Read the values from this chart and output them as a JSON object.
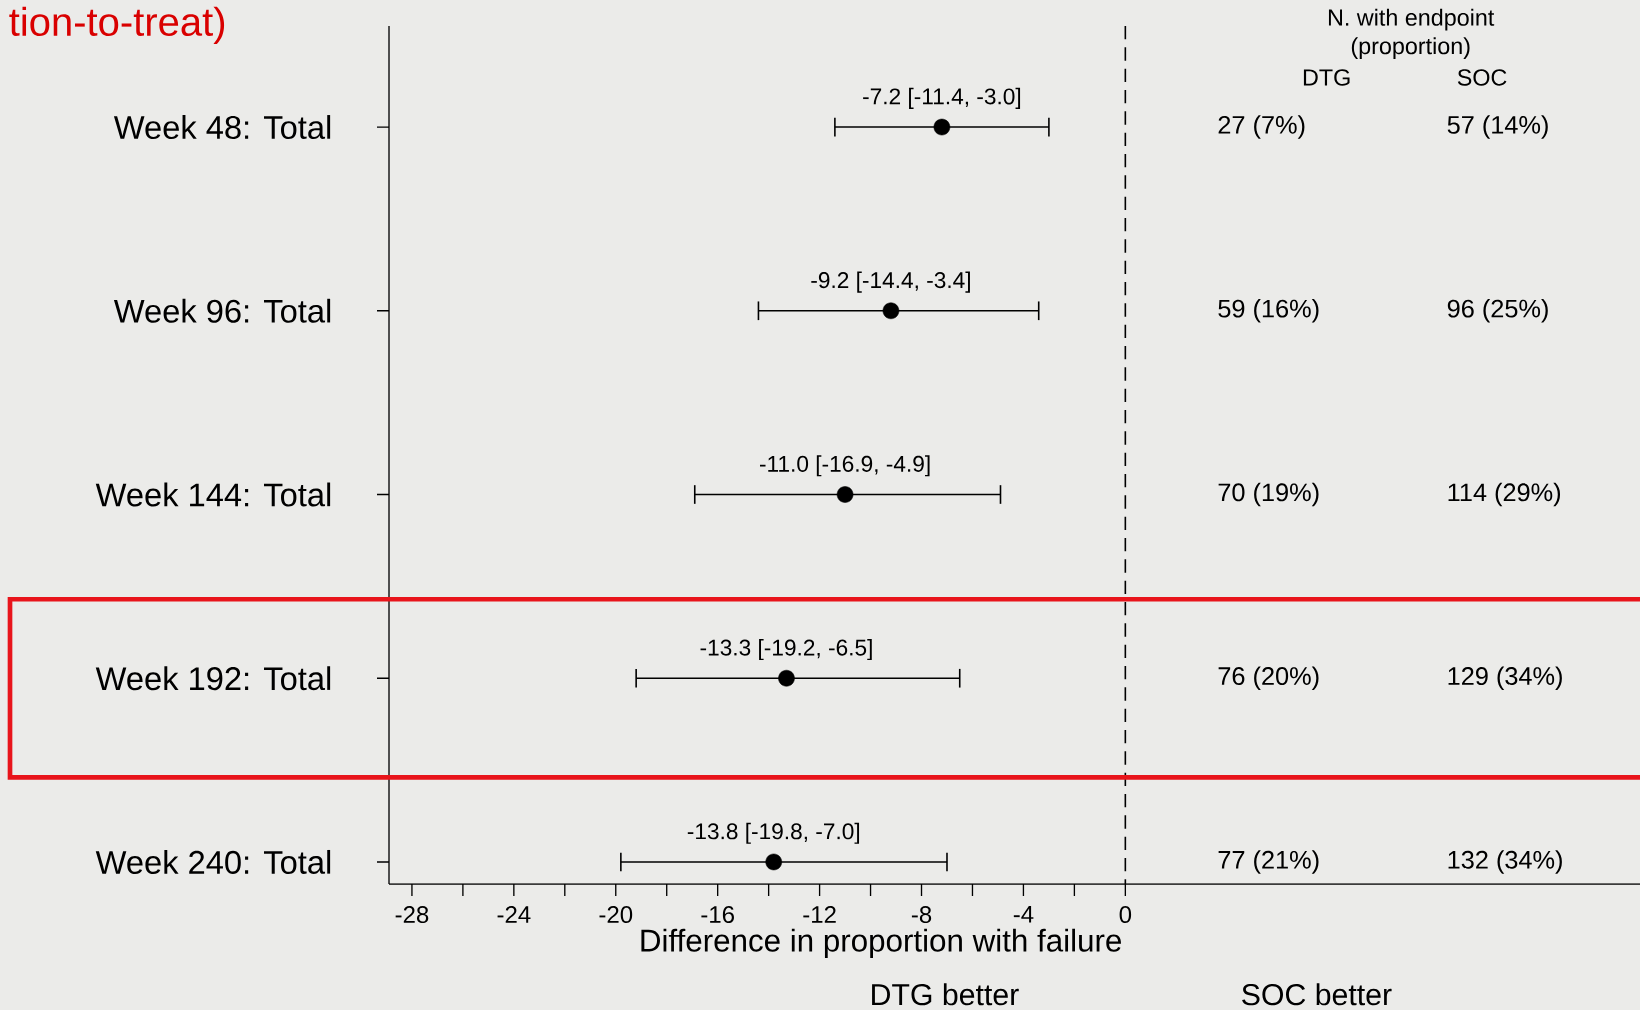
{
  "chart_data": {
    "type": "scatter",
    "orientation": "horizontal",
    "title": "tion-to-treat)",
    "xlabel": "Difference in proportion with failure",
    "categories": [
      "Week 48: Total",
      "Week 96: Total",
      "Week 144: Total",
      "Week 192: Total",
      "Week 240: Total"
    ],
    "values": [
      -7.2,
      -9.2,
      -11.0,
      -13.3,
      -13.8
    ],
    "errors": [
      [
        -11.4,
        -3.0
      ],
      [
        -14.4,
        -3.4
      ],
      [
        -16.9,
        -4.9
      ],
      [
        -19.2,
        -6.5
      ],
      [
        -19.8,
        -7.0
      ]
    ],
    "value_labels": [
      "-7.2 [-11.4, -3.0]",
      "-9.2 [-14.4, -3.4]",
      "-11.0 [-16.9, -4.9]",
      "-13.3 [-19.2, -6.5]",
      "-13.8 [-19.8, -7.0]"
    ],
    "color": "#000000",
    "xlim": [
      -28.9,
      20.2
    ],
    "xticks": [
      -28,
      {
        "value": -26,
        "label": null
      },
      -24,
      {
        "value": -22,
        "label": null
      },
      -20,
      {
        "value": -18,
        "label": null
      },
      -16,
      {
        "value": -14,
        "label": null
      },
      -12,
      {
        "value": -10,
        "label": null
      },
      -8,
      {
        "value": -6,
        "label": null
      },
      -4,
      {
        "value": -2,
        "label": null
      },
      0
    ],
    "ref_lines": [
      {
        "axis": "x",
        "value": 0,
        "line_style": "dashed",
        "color": "#000000"
      }
    ],
    "annotations": [
      "N. with endpoint",
      "(proportion)",
      "DTG",
      "SOC",
      "DTG better",
      "SOC better",
      "27 (7%)",
      "57 (14%)",
      "59 (16%)",
      "96 (25%)",
      "70 (19%)",
      "114 (29%)",
      "76 (20%)",
      "129 (34%)",
      "77 (21%)",
      "132 (34%)"
    ]
  }
}
